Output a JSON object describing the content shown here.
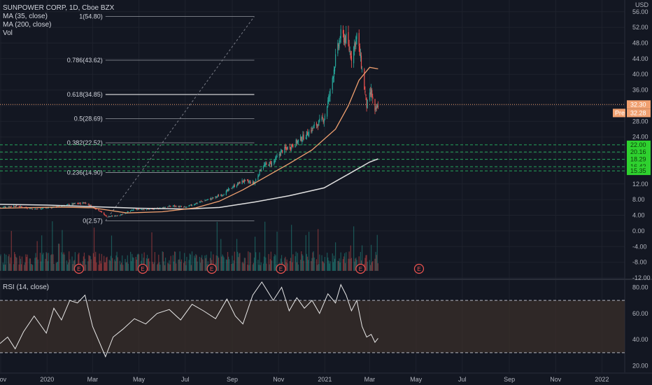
{
  "legend": {
    "title": "SUNPOWER CORP, 1D, Cboe BZX",
    "ma35": "MA (35, close)",
    "ma200": "MA (200, close)",
    "vol": "Vol",
    "rsi": "RSI (14, close)"
  },
  "colors": {
    "background": "#131722",
    "up": "#26a69a",
    "down": "#ef5350",
    "ma35": "#f0a070",
    "ma200": "#e0e0e0",
    "green_badge": "#2fd12f",
    "price_line": "#f0a070",
    "rsi_line": "#e8e8e8",
    "rsi_band": "#3a2f2a"
  },
  "chart_data": [
    {
      "type": "candlestick",
      "title": "SUNPOWER CORP, 1D, Cboe BZX",
      "currency": "USD",
      "y_ticks": [
        "56.00",
        "52.00",
        "48.00",
        "44.00",
        "40.00",
        "36.00",
        "32.00",
        "28.00",
        "24.00",
        "20.00",
        "16.00",
        "12.00",
        "8.00",
        "4.00",
        "0.00",
        "-4.00",
        "-8.00",
        "-12.00"
      ],
      "y_tick_values": [
        56,
        52,
        48,
        44,
        40,
        36,
        32,
        28,
        24,
        20,
        16,
        12,
        8,
        4,
        0,
        -4,
        -8,
        -12
      ],
      "ylim": [
        -12,
        59
      ],
      "x_ticks": [
        "Nov",
        "2020",
        "Mar",
        "May",
        "Jul",
        "Sep",
        "Nov",
        "2021",
        "Mar",
        "May",
        "Jul",
        "Sep",
        "Nov",
        "2022"
      ],
      "x_tick_dates": [
        "2019-11-01",
        "2020-01-01",
        "2020-03-01",
        "2020-05-01",
        "2020-07-01",
        "2020-09-01",
        "2020-11-01",
        "2021-01-01",
        "2021-03-01",
        "2021-05-01",
        "2021-07-01",
        "2021-09-01",
        "2021-11-01",
        "2022-01-01"
      ],
      "xlim": [
        "2019-10-31",
        "2022-01-31"
      ],
      "price_series": [
        {
          "d": "2019-10-31",
          "v": 6.0
        },
        {
          "d": "2019-11-20",
          "v": 6.4
        },
        {
          "d": "2019-12-15",
          "v": 5.6
        },
        {
          "d": "2020-01-10",
          "v": 6.1
        },
        {
          "d": "2020-02-05",
          "v": 6.9
        },
        {
          "d": "2020-02-20",
          "v": 7.2
        },
        {
          "d": "2020-03-10",
          "v": 5.2
        },
        {
          "d": "2020-03-20",
          "v": 3.6
        },
        {
          "d": "2020-04-05",
          "v": 4.0
        },
        {
          "d": "2020-04-25",
          "v": 5.5
        },
        {
          "d": "2020-05-20",
          "v": 5.6
        },
        {
          "d": "2020-06-15",
          "v": 6.4
        },
        {
          "d": "2020-07-01",
          "v": 6.0
        },
        {
          "d": "2020-07-20",
          "v": 7.4
        },
        {
          "d": "2020-08-05",
          "v": 8.3
        },
        {
          "d": "2020-08-20",
          "v": 9.4
        },
        {
          "d": "2020-09-01",
          "v": 11.2
        },
        {
          "d": "2020-09-15",
          "v": 12.8
        },
        {
          "d": "2020-09-30",
          "v": 12.2
        },
        {
          "d": "2020-10-10",
          "v": 16.5
        },
        {
          "d": "2020-10-25",
          "v": 17.5
        },
        {
          "d": "2020-11-05",
          "v": 20.4
        },
        {
          "d": "2020-11-20",
          "v": 22.0
        },
        {
          "d": "2020-12-05",
          "v": 24.2
        },
        {
          "d": "2020-12-20",
          "v": 27.0
        },
        {
          "d": "2020-12-31",
          "v": 28.8
        },
        {
          "d": "2021-01-08",
          "v": 35.5
        },
        {
          "d": "2021-01-15",
          "v": 44.0
        },
        {
          "d": "2021-01-22",
          "v": 50.0
        },
        {
          "d": "2021-01-29",
          "v": 49.0
        },
        {
          "d": "2021-02-05",
          "v": 44.5
        },
        {
          "d": "2021-02-12",
          "v": 50.0
        },
        {
          "d": "2021-02-18",
          "v": 42.5
        },
        {
          "d": "2021-02-25",
          "v": 32.0
        },
        {
          "d": "2021-03-03",
          "v": 35.5
        },
        {
          "d": "2021-03-08",
          "v": 30.0
        },
        {
          "d": "2021-03-12",
          "v": 32.3
        }
      ],
      "ma35": [
        {
          "d": "2019-10-31",
          "v": 5.8
        },
        {
          "d": "2020-01-15",
          "v": 6.1
        },
        {
          "d": "2020-03-01",
          "v": 5.9
        },
        {
          "d": "2020-04-15",
          "v": 4.6
        },
        {
          "d": "2020-06-01",
          "v": 4.9
        },
        {
          "d": "2020-07-15",
          "v": 5.9
        },
        {
          "d": "2020-08-15",
          "v": 7.6
        },
        {
          "d": "2020-09-15",
          "v": 10.5
        },
        {
          "d": "2020-10-15",
          "v": 13.8
        },
        {
          "d": "2020-11-15",
          "v": 17.2
        },
        {
          "d": "2020-12-15",
          "v": 20.7
        },
        {
          "d": "2021-01-15",
          "v": 26.0
        },
        {
          "d": "2021-02-01",
          "v": 32.0
        },
        {
          "d": "2021-02-15",
          "v": 38.5
        },
        {
          "d": "2021-03-01",
          "v": 41.8
        },
        {
          "d": "2021-03-12",
          "v": 41.4
        }
      ],
      "ma200": [
        {
          "d": "2019-10-31",
          "v": 6.8
        },
        {
          "d": "2020-01-01",
          "v": 6.6
        },
        {
          "d": "2020-03-01",
          "v": 6.2
        },
        {
          "d": "2020-05-01",
          "v": 5.8
        },
        {
          "d": "2020-07-01",
          "v": 5.6
        },
        {
          "d": "2020-08-15",
          "v": 6.0
        },
        {
          "d": "2020-10-01",
          "v": 7.4
        },
        {
          "d": "2020-11-15",
          "v": 9.0
        },
        {
          "d": "2020-12-31",
          "v": 11.0
        },
        {
          "d": "2021-02-01",
          "v": 14.5
        },
        {
          "d": "2021-03-01",
          "v": 17.6
        },
        {
          "d": "2021-03-12",
          "v": 18.4
        }
      ],
      "fibonacci": [
        {
          "label": "1(54.80)",
          "v": 54.8
        },
        {
          "label": "0.786(43.62)",
          "v": 43.62
        },
        {
          "label": "0.618(34.85)",
          "v": 34.85
        },
        {
          "label": "0.5(28.69)",
          "v": 28.69
        },
        {
          "label": "0.382(22.52)",
          "v": 22.52
        },
        {
          "label": "0.236(14.90)",
          "v": 14.9
        },
        {
          "label": "0(2.57)",
          "v": 2.57
        }
      ],
      "fib_range": [
        "2020-03-18",
        "2020-09-30"
      ],
      "trend_line": [
        {
          "d": "2020-03-18",
          "v": 2.57
        },
        {
          "d": "2020-09-30",
          "v": 54.8
        }
      ],
      "price_labels": [
        {
          "label": "32.30",
          "v": 32.3,
          "kind": "last"
        },
        {
          "label": "Pre",
          "value_label": "32.28",
          "v": 32.28,
          "kind": "pre"
        }
      ],
      "green_levels": [
        {
          "label": "22.00",
          "v": 22.0
        },
        {
          "label": "20.16",
          "v": 20.16
        },
        {
          "label": "18.29",
          "v": 18.29
        },
        {
          "label": "16.42",
          "v": 16.42
        },
        {
          "label": "15.35",
          "v": 15.35
        }
      ],
      "earnings_markers": [
        "2020-02-12",
        "2020-05-06",
        "2020-08-05",
        "2020-11-04",
        "2021-02-17",
        "2021-05-05"
      ],
      "earnings_label": "E",
      "volume_note": "Volume histogram shown in lower part of the price pane"
    },
    {
      "type": "line",
      "title": "RSI (14, close)",
      "y_ticks": [
        "80.00",
        "60.00",
        "40.00",
        "20.00"
      ],
      "y_tick_values": [
        80,
        60,
        40,
        20
      ],
      "ylim": [
        15,
        85
      ],
      "band": [
        30,
        70
      ],
      "series": [
        {
          "values": [
            {
              "d": "2019-10-31",
              "v": 37
            },
            {
              "d": "2019-11-10",
              "v": 42
            },
            {
              "d": "2019-11-20",
              "v": 33
            },
            {
              "d": "2019-12-01",
              "v": 46
            },
            {
              "d": "2019-12-15",
              "v": 58
            },
            {
              "d": "2019-12-31",
              "v": 45
            },
            {
              "d": "2020-01-10",
              "v": 64
            },
            {
              "d": "2020-01-20",
              "v": 55
            },
            {
              "d": "2020-01-31",
              "v": 70
            },
            {
              "d": "2020-02-10",
              "v": 68
            },
            {
              "d": "2020-02-20",
              "v": 74
            },
            {
              "d": "2020-03-01",
              "v": 50
            },
            {
              "d": "2020-03-10",
              "v": 38
            },
            {
              "d": "2020-03-18",
              "v": 27
            },
            {
              "d": "2020-03-28",
              "v": 42
            },
            {
              "d": "2020-04-10",
              "v": 48
            },
            {
              "d": "2020-04-25",
              "v": 56
            },
            {
              "d": "2020-05-10",
              "v": 52
            },
            {
              "d": "2020-05-25",
              "v": 60
            },
            {
              "d": "2020-06-10",
              "v": 63
            },
            {
              "d": "2020-06-25",
              "v": 55
            },
            {
              "d": "2020-07-10",
              "v": 67
            },
            {
              "d": "2020-07-25",
              "v": 62
            },
            {
              "d": "2020-08-10",
              "v": 56
            },
            {
              "d": "2020-08-25",
              "v": 71
            },
            {
              "d": "2020-09-05",
              "v": 58
            },
            {
              "d": "2020-09-15",
              "v": 52
            },
            {
              "d": "2020-09-28",
              "v": 74
            },
            {
              "d": "2020-10-10",
              "v": 84
            },
            {
              "d": "2020-10-25",
              "v": 70
            },
            {
              "d": "2020-11-05",
              "v": 80
            },
            {
              "d": "2020-11-15",
              "v": 62
            },
            {
              "d": "2020-11-25",
              "v": 72
            },
            {
              "d": "2020-12-05",
              "v": 64
            },
            {
              "d": "2020-12-15",
              "v": 70
            },
            {
              "d": "2020-12-25",
              "v": 60
            },
            {
              "d": "2021-01-05",
              "v": 75
            },
            {
              "d": "2021-01-15",
              "v": 68
            },
            {
              "d": "2021-01-22",
              "v": 82
            },
            {
              "d": "2021-01-29",
              "v": 74
            },
            {
              "d": "2021-02-05",
              "v": 62
            },
            {
              "d": "2021-02-12",
              "v": 70
            },
            {
              "d": "2021-02-19",
              "v": 50
            },
            {
              "d": "2021-02-25",
              "v": 42
            },
            {
              "d": "2021-03-03",
              "v": 44
            },
            {
              "d": "2021-03-08",
              "v": 38
            },
            {
              "d": "2021-03-12",
              "v": 41
            }
          ]
        }
      ]
    }
  ]
}
